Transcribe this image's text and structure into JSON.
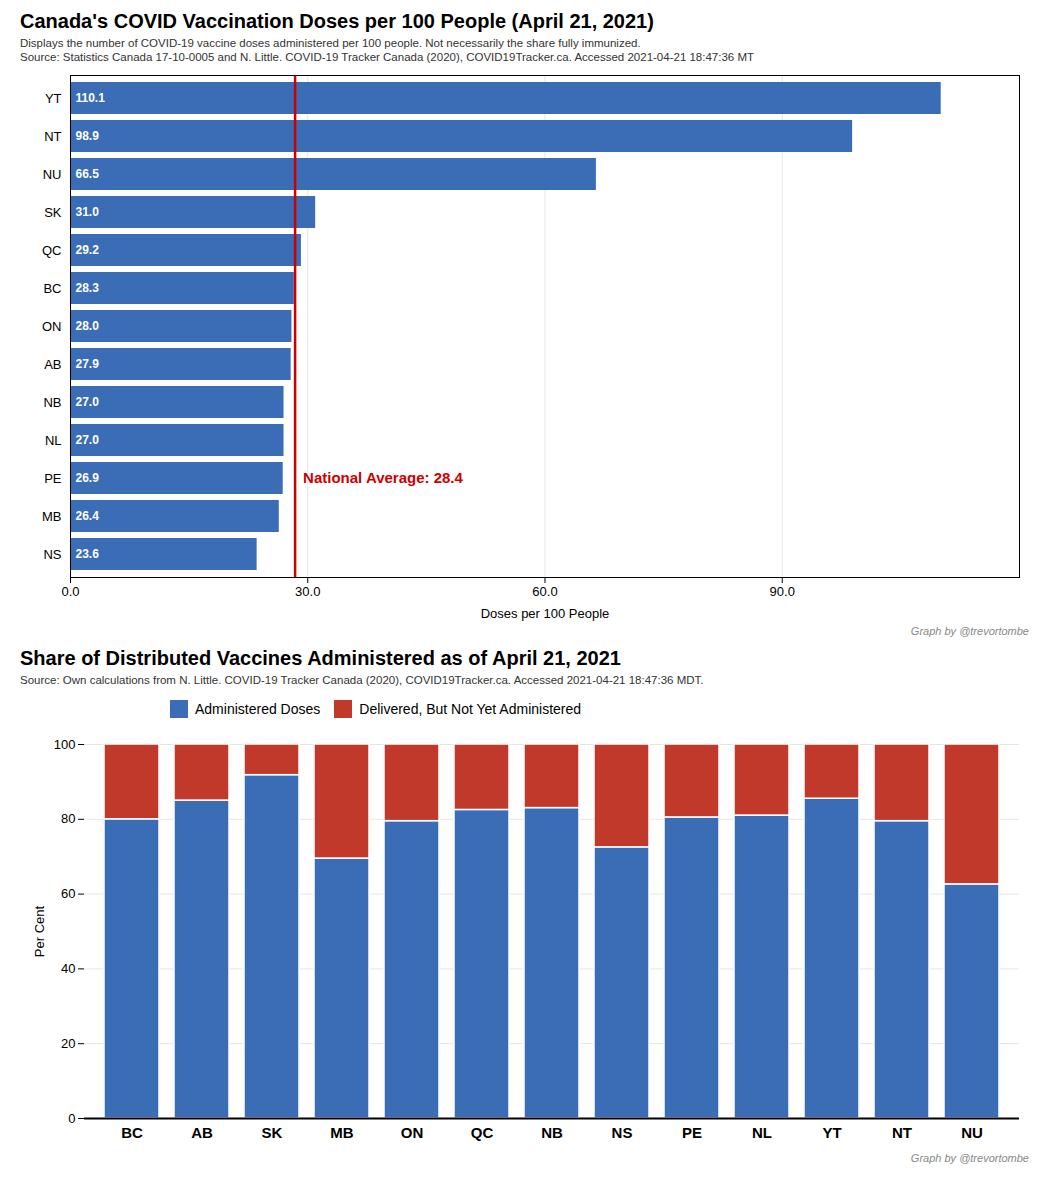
{
  "chart_data": [
    {
      "type": "bar",
      "orientation": "horizontal",
      "title": "Canada's COVID Vaccination Doses per 100 People (April 21, 2021)",
      "subtitle": "Displays the number of COVID-19 vaccine doses administered per 100 people. Not necessarily the share fully immunized.",
      "source": "Source: Statistics Canada 17-10-0005 and N. Little. COVID-19 Tracker Canada (2020), COVID19Tracker.ca. Accessed 2021-04-21 18:47:36 MT",
      "credit": "Graph by @trevortombe",
      "categories": [
        "NS",
        "MB",
        "PE",
        "NL",
        "NB",
        "AB",
        "ON",
        "BC",
        "QC",
        "SK",
        "NU",
        "NT",
        "YT"
      ],
      "values": [
        23.6,
        26.4,
        26.9,
        27.0,
        27.0,
        27.9,
        28.0,
        28.3,
        29.2,
        31.0,
        66.5,
        98.9,
        110.1
      ],
      "value_labels": [
        "23.6",
        "26.4",
        "26.9",
        "27.0",
        "27.0",
        "27.9",
        "28.0",
        "28.3",
        "29.2",
        "31.0",
        "66.5",
        "98.9",
        "110.1"
      ],
      "data_labels": true,
      "color": "#3A6DB5",
      "xlabel": "Doses per 100 People",
      "xlim": [
        0,
        120
      ],
      "xticks": [
        {
          "value": 0,
          "label": "0.0"
        },
        {
          "value": 30,
          "label": "30.0"
        },
        {
          "value": 60,
          "label": "60.0"
        },
        {
          "value": 90,
          "label": "90.0"
        }
      ],
      "grid": true,
      "reference_lines": [
        {
          "x": 28.4,
          "label": "National Average: 28.4",
          "color": "#CC0000"
        }
      ]
    },
    {
      "type": "bar",
      "stacked": true,
      "title": "Share of Distributed Vaccines Administered as of April 21, 2021",
      "subtitle": "Source: Own calculations from N. Little. COVID-19 Tracker Canada (2020), COVID19Tracker.ca. Accessed 2021-04-21 18:47:36 MDT.",
      "credit": "Graph by @trevortombe",
      "categories": [
        "BC",
        "AB",
        "SK",
        "MB",
        "ON",
        "QC",
        "NB",
        "NS",
        "PE",
        "NL",
        "YT",
        "NT",
        "NU"
      ],
      "series": [
        {
          "name": "Administered Doses",
          "color": "#3A6DB5",
          "values": [
            80.0,
            85.0,
            91.8,
            69.5,
            79.5,
            82.5,
            83.0,
            72.5,
            80.5,
            81.0,
            85.5,
            79.5,
            62.6
          ]
        },
        {
          "name": "Delivered, But Not Yet Administered",
          "color": "#C0392B",
          "values": [
            20.0,
            15.0,
            8.2,
            30.5,
            20.5,
            17.5,
            17.0,
            27.5,
            19.5,
            19.0,
            14.5,
            20.5,
            37.4
          ]
        }
      ],
      "ylabel": "Per Cent",
      "ylim": [
        0,
        100
      ],
      "yticks": [
        0,
        20,
        40,
        60,
        80,
        100
      ],
      "grid": true,
      "legend": "top"
    }
  ]
}
